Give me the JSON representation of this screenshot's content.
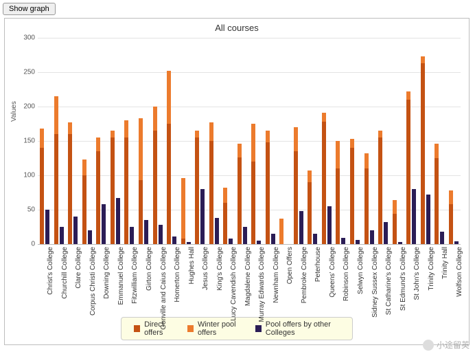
{
  "button_label": "Show graph",
  "chart": {
    "title": "All courses",
    "y_axis_label": "Values",
    "type": "stacked-bar-grouped",
    "ylim": [
      0,
      300
    ],
    "ytick_step": 50,
    "background_color": "#ffffff",
    "grid_color": "#e3e3e3",
    "border_color": "#bdbdbd",
    "title_fontsize": 13,
    "label_fontsize": 10,
    "series": [
      {
        "name": "Direct offers",
        "color": "#c45213",
        "stack": "offers"
      },
      {
        "name": "Winter pool offers",
        "color": "#ec7b2d",
        "stack": "offers"
      },
      {
        "name": "Pool offers by other Colleges",
        "color": "#2b1d56",
        "stack": "pool"
      }
    ],
    "categories": [
      "Christ's College",
      "Churchill College",
      "Clare College",
      "Corpus Christi College",
      "Downing College",
      "Emmanuel College",
      "Fitzwilliam College",
      "Girton College",
      "Gonville and Caius College",
      "Homerton College",
      "Hughes Hall",
      "Jesus College",
      "King's College",
      "Lucy Cavendish College",
      "Magdalene College",
      "Murray Edwards College",
      "Newnham College",
      "Open Offers",
      "Pembroke College",
      "Peterhouse",
      "Queens' College",
      "Robinson College",
      "Selwyn College",
      "Sidney Sussex College",
      "St Catharine's College",
      "St Edmund's College",
      "St John's College",
      "Trinity College",
      "Trinity Hall",
      "Wolfson College"
    ],
    "values": {
      "Direct offers": [
        140,
        160,
        160,
        100,
        135,
        155,
        155,
        93,
        165,
        175,
        8,
        155,
        150,
        60,
        126,
        120,
        148,
        0,
        135,
        90,
        178,
        110,
        140,
        110,
        155,
        44,
        210,
        263,
        125,
        58
      ],
      "Winter pool offers": [
        28,
        55,
        17,
        23,
        20,
        10,
        25,
        90,
        35,
        77,
        88,
        10,
        27,
        22,
        20,
        55,
        17,
        37,
        35,
        17,
        13,
        40,
        13,
        22,
        10,
        20,
        12,
        10,
        21,
        20
      ],
      "Pool offers by other Colleges": [
        50,
        25,
        40,
        20,
        58,
        67,
        25,
        35,
        28,
        11,
        3,
        80,
        38,
        8,
        25,
        5,
        15,
        0,
        48,
        15,
        55,
        9,
        6,
        20,
        32,
        3,
        80,
        72,
        18,
        4
      ]
    },
    "legend_background": "#fdfde3"
  },
  "watermark": {
    "text": "小途留英"
  }
}
